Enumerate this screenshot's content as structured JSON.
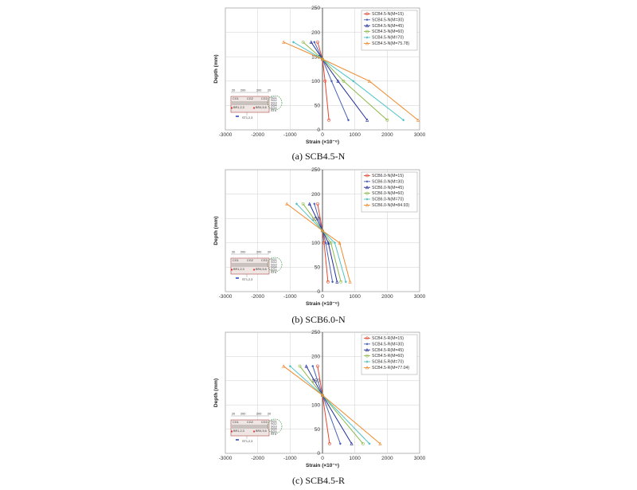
{
  "chart_data": [
    {
      "type": "line",
      "caption": "(a)  SCB4.5-N",
      "xlabel": "Strain (×10⁻⁶)",
      "ylabel": "Depth (mm)",
      "xlim": [
        -3000,
        3000
      ],
      "ylim": [
        0,
        250
      ],
      "xticks": [
        -3000,
        -2000,
        -1000,
        0,
        1000,
        2000,
        3000
      ],
      "yticks": [
        0,
        50,
        100,
        150,
        200,
        250
      ],
      "depths": [
        180,
        145,
        100,
        20
      ],
      "series": [
        {
          "name": "SCB4.5-N(M=15)",
          "color": "#e8452c",
          "strains": [
            -150,
            0,
            80,
            200
          ]
        },
        {
          "name": "SCB4.5-N(M=30)",
          "color": "#4a63b8",
          "strains": [
            -250,
            0,
            280,
            800
          ]
        },
        {
          "name": "SCB4.5-N(M=45)",
          "color": "#1f2d99",
          "strains": [
            -350,
            0,
            480,
            1380
          ]
        },
        {
          "name": "SCB4.5-N(M=60)",
          "color": "#8db94a",
          "strains": [
            -600,
            0,
            650,
            2000
          ]
        },
        {
          "name": "SCB4.5-N(M=70)",
          "color": "#4fc3c9",
          "strains": [
            -900,
            0,
            950,
            2500
          ]
        },
        {
          "name": "SCB4.5-N(M=75.78)",
          "color": "#f08a2c",
          "strains": [
            -1200,
            0,
            1450,
            2950
          ]
        }
      ]
    },
    {
      "type": "line",
      "caption": "(b)  SCB6.0-N",
      "xlabel": "Strain (×10⁻⁶)",
      "ylabel": "Depth (mm)",
      "xlim": [
        -3000,
        3000
      ],
      "ylim": [
        0,
        250
      ],
      "xticks": [
        -3000,
        -2000,
        -1000,
        0,
        1000,
        2000,
        3000
      ],
      "yticks": [
        0,
        50,
        100,
        150,
        200,
        250
      ],
      "depths": [
        180,
        125,
        100,
        20
      ],
      "series": [
        {
          "name": "SCB6.0-N(M=15)",
          "color": "#e8452c",
          "strains": [
            -150,
            0,
            50,
            170
          ]
        },
        {
          "name": "SCB6.0-N(M=30)",
          "color": "#4a63b8",
          "strains": [
            -250,
            0,
            100,
            310
          ]
        },
        {
          "name": "SCB6.0-N(M=45)",
          "color": "#1f2d99",
          "strains": [
            -400,
            0,
            180,
            450
          ]
        },
        {
          "name": "SCB6.0-N(M=60)",
          "color": "#8db94a",
          "strains": [
            -600,
            0,
            260,
            570
          ]
        },
        {
          "name": "SCB6.0-N(M=70)",
          "color": "#4fc3c9",
          "strains": [
            -800,
            0,
            380,
            720
          ]
        },
        {
          "name": "SCB6.0-N(M=84.93)",
          "color": "#f08a2c",
          "strains": [
            -1100,
            0,
            530,
            850
          ]
        }
      ]
    },
    {
      "type": "line",
      "caption": "(c)  SCB4.5-R",
      "xlabel": "Strain (×10⁻⁶)",
      "ylabel": "Depth (mm)",
      "xlim": [
        -3000,
        3000
      ],
      "ylim": [
        0,
        250
      ],
      "xticks": [
        -3000,
        -2000,
        -1000,
        0,
        1000,
        2000,
        3000
      ],
      "yticks": [
        0,
        50,
        100,
        150,
        200,
        250
      ],
      "depths": [
        180,
        120,
        20
      ],
      "series": [
        {
          "name": "SCB4.5-R(M=15)",
          "color": "#e8452c",
          "strains": [
            -150,
            0,
            220
          ]
        },
        {
          "name": "SCB4.5-R(M=30)",
          "color": "#4a63b8",
          "strains": [
            -300,
            0,
            550
          ]
        },
        {
          "name": "SCB4.5-R(M=45)",
          "color": "#1f2d99",
          "strains": [
            -500,
            0,
            900
          ]
        },
        {
          "name": "SCB4.5-R(M=60)",
          "color": "#8db94a",
          "strains": [
            -700,
            0,
            1250
          ]
        },
        {
          "name": "SCB4.5-R(M=70)",
          "color": "#4fc3c9",
          "strains": [
            -1000,
            0,
            1450
          ]
        },
        {
          "name": "SCB4.5-R(M=77.04)",
          "color": "#f08a2c",
          "strains": [
            -1200,
            0,
            1780
          ]
        }
      ]
    }
  ],
  "insets": [
    {
      "dims": [
        "20",
        "200",
        "200",
        "20"
      ],
      "gauges_top": [
        "CG1",
        "CG2",
        "CG3"
      ],
      "labels_left": [
        "BR1,2,3",
        "BR4,5,6"
      ],
      "label_bottom": "ST1,2,3",
      "labels_right": [
        "SG1",
        "SG2",
        "SG3",
        "SG4",
        "SG5",
        "ST4"
      ]
    },
    {
      "dims": [
        "20",
        "200",
        "200",
        "20"
      ],
      "gauges_top": [
        "CG1",
        "CG2",
        "CG3"
      ],
      "labels_left": [
        "BR1,2,3",
        "BR4,5,6"
      ],
      "label_bottom": "ST1,2,3",
      "labels_right": [
        "SG1",
        "SG2",
        "SG3",
        "SG4",
        "SG5",
        "ST4"
      ]
    },
    {
      "dims": [
        "20",
        "200",
        "200",
        "20"
      ],
      "gauges_top": [
        "CG1",
        "CG2",
        "CG3"
      ],
      "labels_left": [
        "BR1,2,3",
        "BR4,5,6"
      ],
      "label_bottom": "ST1,2,3",
      "labels_right": [
        "SG1",
        "SG2",
        "SG3",
        "SG4",
        "SG5",
        "ST4"
      ]
    }
  ]
}
